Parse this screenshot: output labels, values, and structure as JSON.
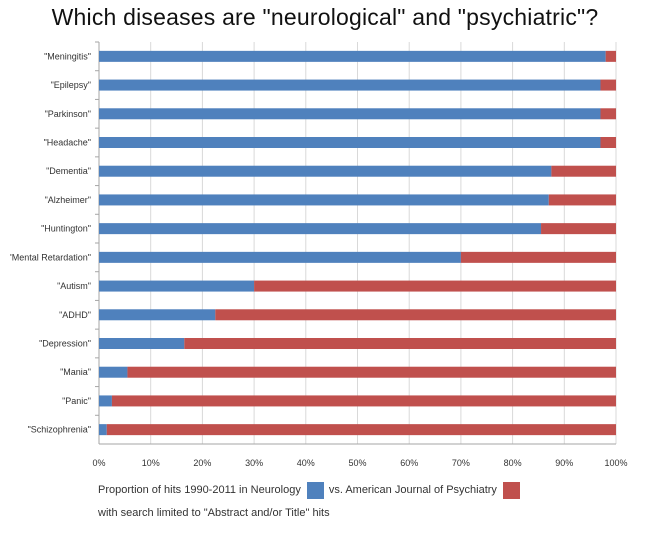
{
  "chart_data": {
    "type": "bar",
    "orientation": "horizontal",
    "stacked": true,
    "title": "Which diseases are \"neurological\" and \"psychiatric\"?",
    "categories": [
      "\"Meningitis\"",
      "\"Epilepsy\"",
      "\"Parkinson\"",
      "\"Headache\"",
      "\"Dementia\"",
      "\"Alzheimer\"",
      "\"Huntington\"",
      "'Mental Retardation\"",
      "\"Autism\"",
      "\"ADHD\"",
      "\"Depression\"",
      "\"Mania\"",
      "\"Panic\"",
      "\"Schizophrenia\""
    ],
    "series": [
      {
        "values": [
          98,
          97,
          97,
          97,
          87.5,
          87,
          85.5,
          70,
          30,
          22.5,
          16.5,
          5.5,
          2.5,
          1.5
        ],
        "color": "#4f81bd"
      },
      {
        "values": [
          2,
          3,
          3,
          3,
          12.5,
          13,
          14.5,
          30,
          70,
          77.5,
          83.5,
          94.5,
          97.5,
          98.5
        ],
        "color": "#c0504d"
      }
    ],
    "x_ticks": [
      "0%",
      "10%",
      "20%",
      "30%",
      "40%",
      "50%",
      "60%",
      "70%",
      "80%",
      "90%",
      "100%"
    ],
    "xlim": [
      0,
      100
    ],
    "grid": true,
    "legend_position": "bottom",
    "legend": {
      "neurology_label": "Proportion of hits 1990-2011 in Neurology",
      "psychiatry_label": "vs. American Journal of Psychiatry",
      "note": "with search limited to \"Abstract and/or Title\" hits"
    }
  }
}
